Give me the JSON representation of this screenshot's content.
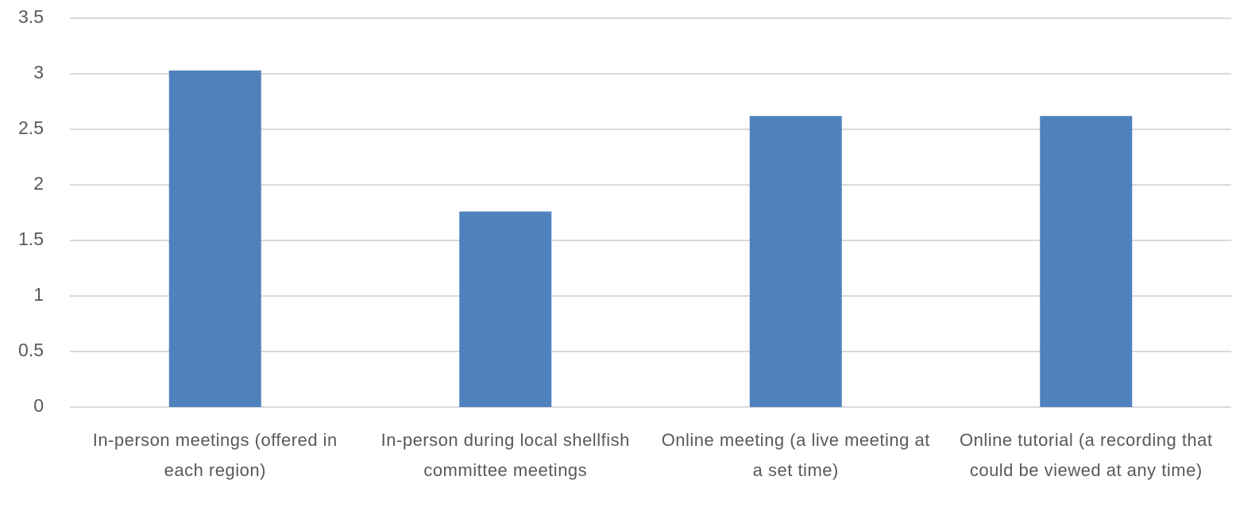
{
  "chart_data": {
    "type": "bar",
    "categories": [
      "In-person meetings (offered in each region)",
      "In-person during local shellfish committee meetings",
      "Online meeting (a live meeting at a set time)",
      "Online tutorial (a recording that could be viewed at any time)"
    ],
    "values": [
      3.03,
      1.76,
      2.62,
      2.62
    ],
    "color": "#4f81bd",
    "ylim": [
      0,
      3.5
    ],
    "yticks": [
      0,
      0.5,
      1,
      1.5,
      2,
      2.5,
      3,
      3.5
    ],
    "grid": true
  }
}
